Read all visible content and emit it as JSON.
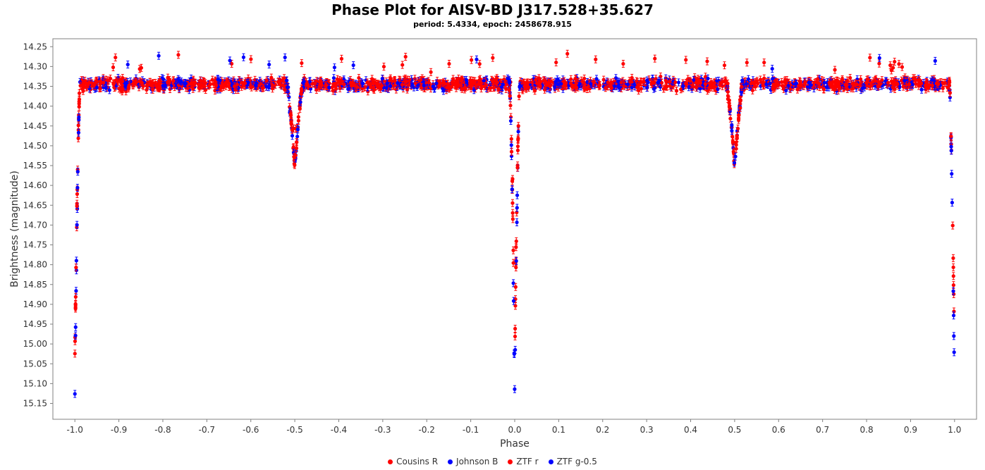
{
  "title": "Phase Plot for AISV-BD J317.528+35.627",
  "subtitle": "period: 5.4334, epoch: 2458678.915",
  "colors": {
    "red": "#ff0000",
    "blue": "#0000ff"
  },
  "chart_data": {
    "type": "scatter",
    "xlabel": "Phase",
    "ylabel": "Brightness (magnitude)",
    "xlim": [
      -1.05,
      1.05
    ],
    "ylim": [
      15.19,
      14.23
    ],
    "y_inverted": true,
    "grid": false,
    "legend_position": "bottom",
    "x_ticks": [
      "-1.0",
      "-0.9",
      "-0.8",
      "-0.7",
      "-0.6",
      "-0.5",
      "-0.4",
      "-0.3",
      "-0.2",
      "-0.1",
      "0.0",
      "0.1",
      "0.2",
      "0.3",
      "0.4",
      "0.5",
      "0.6",
      "0.7",
      "0.8",
      "0.9",
      "1.0"
    ],
    "y_ticks": [
      "14.25",
      "14.30",
      "14.35",
      "14.40",
      "14.45",
      "14.50",
      "14.55",
      "14.60",
      "14.65",
      "14.70",
      "14.75",
      "14.80",
      "14.85",
      "14.90",
      "14.95",
      "15.00",
      "15.05",
      "15.10",
      "15.15"
    ],
    "light_curve": {
      "baseline_magnitude": 14.345,
      "scatter_magnitude": 0.025,
      "primary_eclipse": {
        "phase": 0.0,
        "min_magnitude_red": 15.04,
        "min_magnitude_blue": 15.13,
        "half_width_phase": 0.012
      },
      "secondary_eclipse": {
        "phase": 0.5,
        "min_magnitude": 14.55,
        "half_width_phase": 0.018
      }
    },
    "series": [
      {
        "name": "Cousins R",
        "color": "#ff0000"
      },
      {
        "name": "Johnson B",
        "color": "#0000ff"
      },
      {
        "name": "ZTF r",
        "color": "#ff0000"
      },
      {
        "name": "ZTF g-0.5",
        "color": "#0000ff"
      }
    ]
  }
}
